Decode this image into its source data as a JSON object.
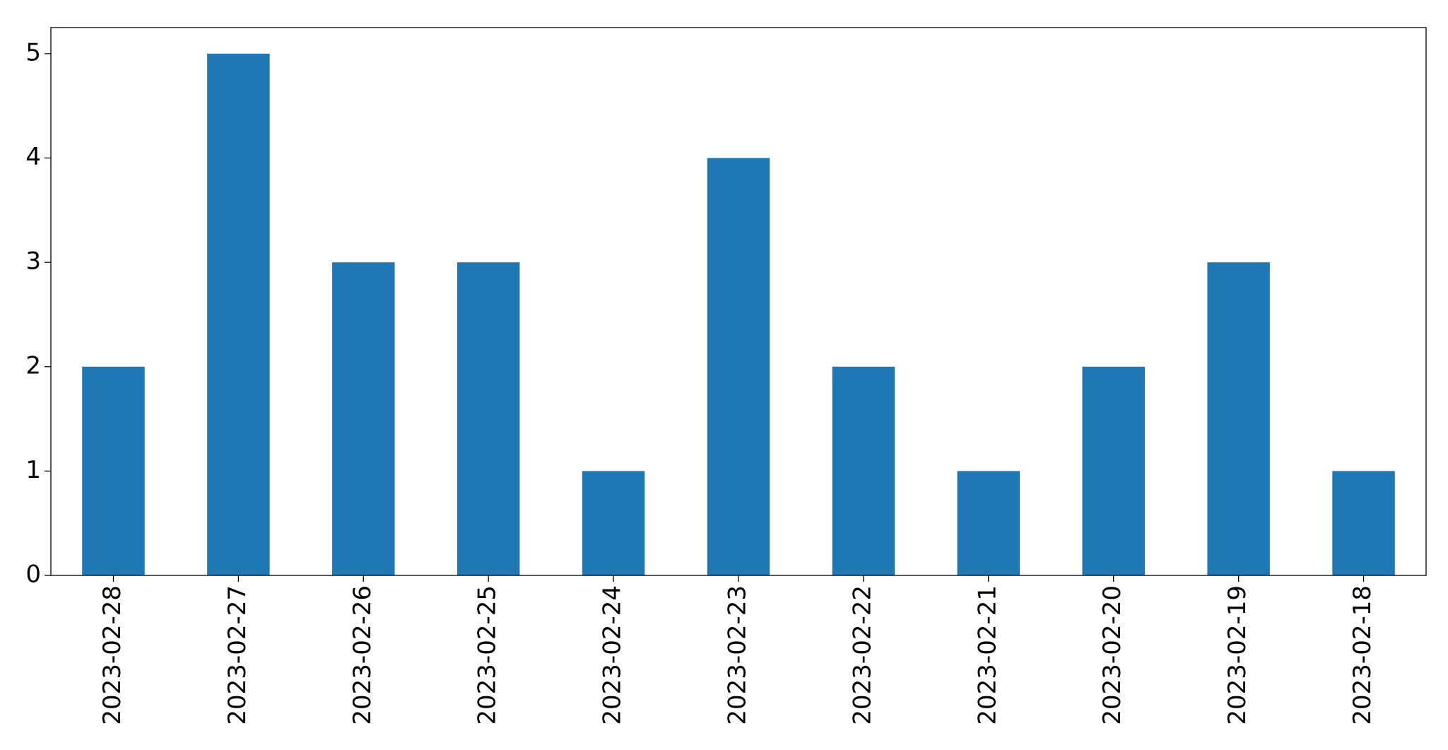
{
  "chart_data": {
    "type": "bar",
    "categories": [
      "2023-02-28",
      "2023-02-27",
      "2023-02-26",
      "2023-02-25",
      "2023-02-24",
      "2023-02-23",
      "2023-02-22",
      "2023-02-21",
      "2023-02-20",
      "2023-02-19",
      "2023-02-18"
    ],
    "values": [
      2,
      5,
      3,
      3,
      1,
      4,
      2,
      1,
      2,
      3,
      1
    ],
    "color": "#1f77b4",
    "ylim": [
      0,
      5.25
    ],
    "yticks": [
      0,
      1,
      2,
      3,
      4,
      5
    ],
    "grid": false
  }
}
